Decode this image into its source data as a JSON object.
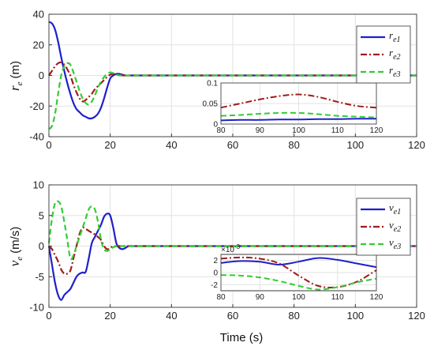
{
  "colors": {
    "series1": "#1f1fcc",
    "series2": "#a01c1c",
    "series3": "#33cc33",
    "grid": "#e2e2e2",
    "axis": "#333333"
  },
  "chart_data": [
    {
      "id": "top",
      "type": "line",
      "ylabel": {
        "main": "r",
        "sub": "e",
        "unit": "(m)"
      },
      "xlim": [
        0,
        120
      ],
      "ylim": [
        -40,
        40
      ],
      "xticks": [
        0,
        20,
        40,
        60,
        80,
        100,
        120
      ],
      "yticks": [
        -40,
        -20,
        0,
        20,
        40
      ],
      "grid": true,
      "legend_position": "top-right",
      "series": [
        {
          "name": "r",
          "sub": "e1",
          "style": "solid",
          "x": [
            0,
            1,
            2,
            3,
            4,
            5,
            6,
            7,
            8,
            9,
            10,
            11,
            12,
            13,
            14,
            15,
            16,
            17,
            18,
            19,
            20,
            21,
            22,
            23,
            24,
            25,
            26,
            28,
            30,
            35,
            40,
            60,
            80,
            100,
            120
          ],
          "y": [
            35,
            34,
            30,
            22,
            12,
            3,
            -5,
            -12,
            -18,
            -22,
            -24,
            -26,
            -27,
            -28,
            -28,
            -27,
            -25,
            -21,
            -15,
            -8,
            -2,
            0,
            1,
            1,
            0.5,
            0,
            0,
            0,
            0,
            0,
            0,
            0,
            0,
            0,
            0
          ]
        },
        {
          "name": "r",
          "sub": "e2",
          "style": "dashdot",
          "x": [
            0,
            1,
            2,
            3,
            4,
            5,
            6,
            7,
            8,
            9,
            10,
            11,
            12,
            13,
            14,
            15,
            16,
            17,
            18,
            19,
            20,
            21,
            22,
            23,
            24,
            25,
            26,
            28,
            30,
            35,
            40,
            60,
            80,
            100,
            120
          ],
          "y": [
            0,
            3,
            6,
            8,
            8.5,
            7,
            4,
            0,
            -6,
            -11,
            -15,
            -17,
            -16,
            -14,
            -12,
            -9,
            -7,
            -5,
            -3,
            -1,
            0.5,
            1,
            1,
            0.5,
            0,
            0,
            0,
            0,
            0,
            0,
            0,
            0,
            0,
            0,
            0
          ]
        },
        {
          "name": "r",
          "sub": "e3",
          "style": "dashed",
          "x": [
            0,
            1,
            2,
            3,
            4,
            5,
            6,
            7,
            8,
            9,
            10,
            11,
            12,
            13,
            14,
            15,
            16,
            17,
            18,
            19,
            20,
            21,
            22,
            23,
            24,
            25,
            26,
            28,
            30,
            35,
            40,
            60,
            80,
            100,
            120
          ],
          "y": [
            -35,
            -33,
            -25,
            -12,
            0,
            6,
            8,
            7,
            2,
            -4,
            -10,
            -15,
            -18,
            -19,
            -17,
            -13,
            -8,
            -4,
            -1,
            1,
            2,
            1.5,
            0.5,
            0,
            0,
            0,
            0,
            0,
            0,
            0,
            0,
            0,
            0,
            0,
            0
          ]
        }
      ],
      "inset": {
        "xlim": [
          80,
          120
        ],
        "ylim": [
          0,
          0.1
        ],
        "xticks": [
          80,
          90,
          100,
          110,
          120
        ],
        "yticks": [
          0,
          0.05,
          0.1
        ],
        "yticklabels": [
          "0",
          "0.05",
          "0.1"
        ],
        "exponent": "",
        "series": [
          {
            "x": [
              80,
              85,
              90,
              95,
              100,
              105,
              110,
              115,
              120
            ],
            "y": [
              0.009,
              0.01,
              0.01,
              0.011,
              0.011,
              0.012,
              0.012,
              0.013,
              0.013
            ]
          },
          {
            "x": [
              80,
              85,
              90,
              95,
              100,
              105,
              110,
              115,
              120
            ],
            "y": [
              0.04,
              0.05,
              0.06,
              0.068,
              0.072,
              0.066,
              0.054,
              0.044,
              0.04
            ]
          },
          {
            "x": [
              80,
              85,
              90,
              95,
              100,
              105,
              110,
              115,
              120
            ],
            "y": [
              0.02,
              0.022,
              0.025,
              0.027,
              0.027,
              0.024,
              0.02,
              0.018,
              0.016
            ]
          }
        ]
      }
    },
    {
      "id": "bottom",
      "type": "line",
      "xlabel": "Time (s)",
      "ylabel": {
        "main": "v",
        "sub": "e",
        "unit": "(m/s)"
      },
      "xlim": [
        0,
        120
      ],
      "ylim": [
        -10,
        10
      ],
      "xticks": [
        0,
        20,
        40,
        60,
        80,
        100,
        120
      ],
      "yticks": [
        -10,
        -5,
        0,
        5,
        10
      ],
      "grid": true,
      "legend_position": "top-right",
      "series": [
        {
          "name": "v",
          "sub": "e1",
          "style": "solid",
          "x": [
            0,
            1,
            2,
            3,
            4,
            5,
            6,
            7,
            8,
            9,
            10,
            11,
            12,
            13,
            14,
            15,
            16,
            17,
            18,
            19,
            20,
            21,
            22,
            23,
            24,
            25,
            26,
            28,
            30,
            35,
            40,
            60,
            80,
            100,
            120
          ],
          "y": [
            0,
            -3,
            -6,
            -8,
            -8.8,
            -8,
            -7.5,
            -7,
            -6,
            -5,
            -4.5,
            -4.3,
            -4.2,
            -2,
            0.5,
            1.5,
            2.5,
            3.5,
            4.8,
            5.3,
            5,
            3,
            0.5,
            -0.3,
            -0.5,
            -0.3,
            0,
            0,
            0,
            0,
            0,
            0,
            0,
            0,
            0
          ]
        },
        {
          "name": "v",
          "sub": "e2",
          "style": "dashdot",
          "x": [
            0,
            1,
            2,
            3,
            4,
            5,
            6,
            7,
            8,
            9,
            10,
            11,
            12,
            13,
            14,
            15,
            16,
            17,
            18,
            19,
            20,
            21,
            22,
            23,
            24,
            25,
            26,
            28,
            30,
            35,
            40,
            60,
            80,
            100,
            120
          ],
          "y": [
            0,
            -0.5,
            -1.5,
            -2.5,
            -3.8,
            -4.5,
            -4.5,
            -4,
            -2,
            0,
            2,
            3,
            2.8,
            2.5,
            2.2,
            1.9,
            1.5,
            1,
            0,
            -0.5,
            -0.3,
            0,
            0,
            0,
            0,
            0,
            0,
            0,
            0,
            0,
            0,
            0,
            0,
            0,
            0
          ]
        },
        {
          "name": "v",
          "sub": "e3",
          "style": "dashed",
          "x": [
            0,
            1,
            2,
            3,
            4,
            5,
            6,
            7,
            8,
            9,
            10,
            11,
            12,
            13,
            14,
            15,
            16,
            17,
            18,
            19,
            20,
            21,
            22,
            23,
            24,
            25,
            26,
            28,
            30,
            35,
            40,
            60,
            80,
            100,
            120
          ],
          "y": [
            0.5,
            4.5,
            7,
            7.3,
            6.5,
            4,
            1,
            -2,
            -1.5,
            0,
            1.5,
            3,
            4.5,
            6,
            6.5,
            6,
            4,
            1,
            -0.5,
            -0.8,
            -0.5,
            -0.2,
            0,
            0,
            0,
            0,
            0,
            0,
            0,
            0,
            0,
            0,
            0,
            0,
            0
          ]
        }
      ],
      "inset": {
        "xlim": [
          80,
          120
        ],
        "ylim": [
          -3,
          3
        ],
        "xticks": [
          80,
          90,
          100,
          110,
          120
        ],
        "yticks": [
          -2,
          0,
          2
        ],
        "yticklabels": [
          "-2",
          "0",
          "2"
        ],
        "exponent": "×10",
        "exponent_power": "-3",
        "series": [
          {
            "x": [
              80,
              85,
              90,
              95,
              100,
              105,
              110,
              115,
              120
            ],
            "y": [
              1.6,
              1.9,
              1.8,
              1.3,
              1.8,
              2.4,
              2.1,
              1.5,
              0.9
            ]
          },
          {
            "x": [
              80,
              85,
              90,
              95,
              100,
              105,
              110,
              115,
              120
            ],
            "y": [
              2.3,
              2.5,
              2.3,
              1.5,
              -0.5,
              -2.2,
              -2.4,
              -1.5,
              0.4
            ]
          },
          {
            "x": [
              80,
              85,
              90,
              95,
              100,
              105,
              110,
              115,
              120
            ],
            "y": [
              -0.4,
              -0.5,
              -0.8,
              -1.4,
              -2.2,
              -2.8,
              -2.4,
              -1.6,
              -1.0
            ]
          }
        ]
      }
    }
  ]
}
